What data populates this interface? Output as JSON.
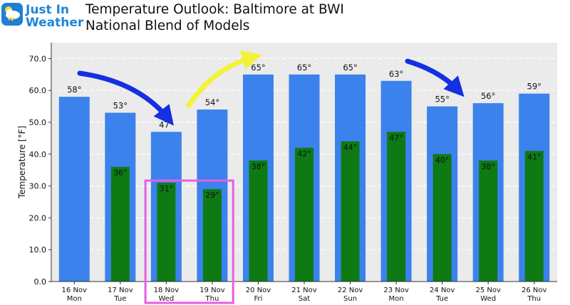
{
  "header": {
    "logo_line1": "Just In",
    "logo_line2": "Weather",
    "title_line1": "Temperature Outlook: Baltimore at BWI",
    "title_line2": "National Blend of Models"
  },
  "colors": {
    "high_bar": "#3b82ec",
    "low_bar": "#0d7a14",
    "plot_bg": "#ebebeb",
    "highlight_box": "#e75de5",
    "arrow_blue": "#1430e0",
    "arrow_yellow": "#f2f23a"
  },
  "annotations": [
    {
      "type": "arrow",
      "color": "blue",
      "meaning": "cooling trend"
    },
    {
      "type": "arrow",
      "color": "yellow",
      "meaning": "warming trend"
    },
    {
      "type": "arrow",
      "color": "blue",
      "meaning": "cooling trend"
    },
    {
      "type": "highlight-box",
      "color": "magenta",
      "covers": [
        "18 Nov",
        "19 Nov"
      ]
    }
  ],
  "chart_data": {
    "type": "bar",
    "title": "",
    "ylabel": "Temperature [°F]",
    "xlabel": "",
    "ylim": [
      0,
      75
    ],
    "yticks": [
      "0.0",
      "10.0",
      "20.0",
      "30.0",
      "40.0",
      "50.0",
      "60.0",
      "70.0"
    ],
    "grid": true,
    "categories": [
      {
        "date": "16 Nov",
        "day": "Mon"
      },
      {
        "date": "17 Nov",
        "day": "Tue"
      },
      {
        "date": "18 Nov",
        "day": "Wed"
      },
      {
        "date": "19 Nov",
        "day": "Thu"
      },
      {
        "date": "20 Nov",
        "day": "Fri"
      },
      {
        "date": "21 Nov",
        "day": "Sat"
      },
      {
        "date": "22 Nov",
        "day": "Sun"
      },
      {
        "date": "23 Nov",
        "day": "Mon"
      },
      {
        "date": "24 Nov",
        "day": "Tue"
      },
      {
        "date": "25 Nov",
        "day": "Wed"
      },
      {
        "date": "26 Nov",
        "day": "Thu"
      }
    ],
    "series": [
      {
        "values": [
          58,
          53,
          47,
          54,
          65,
          65,
          65,
          63,
          55,
          56,
          59
        ],
        "labels": [
          "58°",
          "53°",
          "47°",
          "54°",
          "65°",
          "65°",
          "65°",
          "63°",
          "55°",
          "56°",
          "59°"
        ]
      },
      {
        "values": [
          null,
          36,
          31,
          29,
          38,
          42,
          44,
          47,
          40,
          38,
          41
        ],
        "labels": [
          null,
          "36°",
          "31°",
          "29°",
          "38°",
          "42°",
          "44°",
          "47°",
          "40°",
          "38°",
          "41°"
        ]
      }
    ]
  }
}
